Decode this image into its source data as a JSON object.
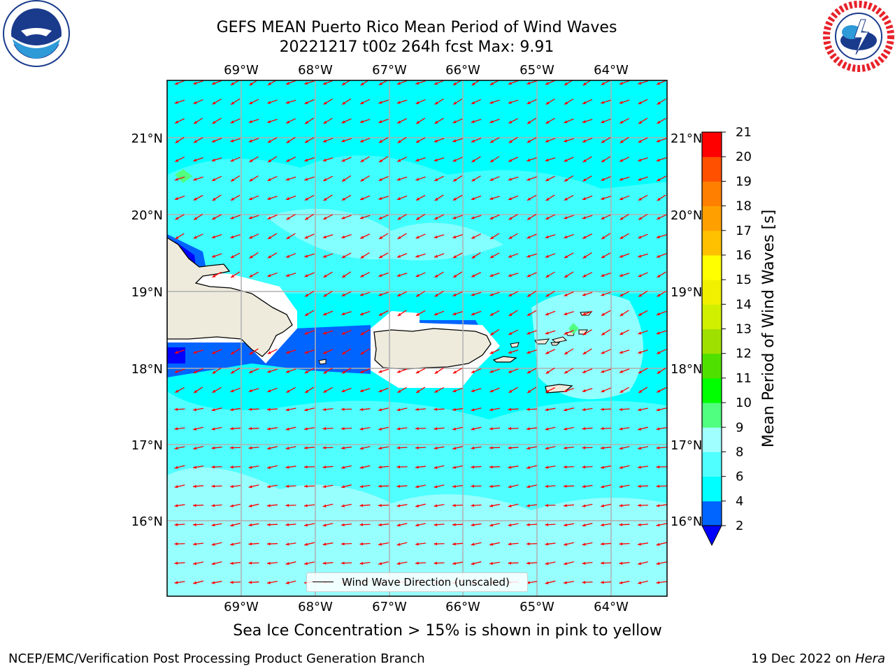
{
  "title_line1": "GEFS MEAN Puerto Rico Mean Period of Wind Waves",
  "title_line2": "20221217 t00z 264h fcst   Max: 9.91",
  "caption": "Sea Ice Concentration > 15% is shown in pink to yellow",
  "footer_left": "NCEP/EMC/Verification Post Processing Product Generation Branch",
  "footer_right_date": "19 Dec 2022 on",
  "footer_right_host": "Hera",
  "legend_label": "Wind Wave Direction (unscaled)",
  "logos": {
    "left": "noaa-logo",
    "right": "nws-logo"
  },
  "map": {
    "lon_labels": [
      "69°W",
      "68°W",
      "67°W",
      "66°W",
      "65°W",
      "64°W"
    ],
    "lat_labels": [
      "21°N",
      "20°N",
      "19°N",
      "18°N",
      "17°N",
      "16°N"
    ],
    "extent": {
      "lon_min": -70.0,
      "lon_max": -63.25,
      "lat_min": 15.0,
      "lat_max": 21.75
    },
    "arrow_color": "#ff0000",
    "ocean_color": "#00ffff",
    "land_color": "#eeebdc"
  },
  "colorbar": {
    "label": "Mean Period of Wind Waves [s]",
    "ticks": [
      "2",
      "4",
      "6",
      "8",
      "9",
      "10",
      "11",
      "12",
      "13",
      "14",
      "15",
      "16",
      "17",
      "18",
      "19",
      "20",
      "21"
    ],
    "colors": [
      "#0064ff",
      "#00ffff",
      "#50ffff",
      "#a0ffff",
      "#50ff80",
      "#00ff00",
      "#50e000",
      "#a0e000",
      "#d0f000",
      "#f0f000",
      "#ffff00",
      "#ffc000",
      "#ffa000",
      "#ff8000",
      "#ff5000",
      "#ff2800"
    ],
    "extend_color": "#0000ff",
    "top_color": "#ff0000"
  }
}
